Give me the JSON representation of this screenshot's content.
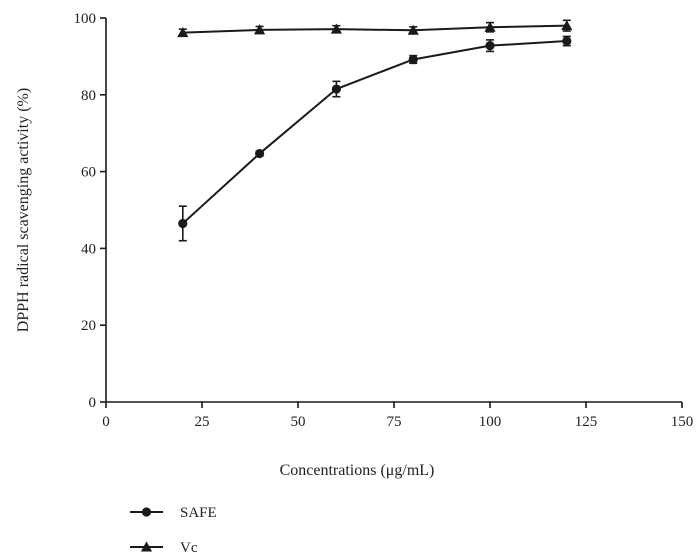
{
  "chart_data": {
    "type": "line",
    "title": "",
    "xlabel": "Concentrations (μg/mL)",
    "ylabel": "DPPH radical scavenging activity (%)",
    "xlim": [
      0,
      150
    ],
    "ylim": [
      0,
      100
    ],
    "xticks": [
      0,
      25,
      50,
      75,
      100,
      125,
      150
    ],
    "yticks": [
      0,
      20,
      40,
      60,
      80,
      100
    ],
    "grid": false,
    "legend_position": "bottom-left",
    "series": [
      {
        "name": "SAFE",
        "marker": "circle",
        "color": "#1a1a1a",
        "x": [
          20,
          40,
          60,
          80,
          100,
          120
        ],
        "y": [
          46.5,
          64.7,
          81.5,
          89.2,
          92.8,
          94.0
        ],
        "error": [
          4.5,
          0.6,
          2.0,
          1.0,
          1.5,
          1.2
        ]
      },
      {
        "name": "Vc",
        "marker": "triangle",
        "color": "#1a1a1a",
        "x": [
          20,
          40,
          60,
          80,
          100,
          120
        ],
        "y": [
          96.2,
          96.9,
          97.1,
          96.8,
          97.6,
          98.0
        ],
        "error": [
          0.9,
          0.9,
          0.9,
          0.9,
          1.2,
          1.4
        ]
      }
    ]
  }
}
